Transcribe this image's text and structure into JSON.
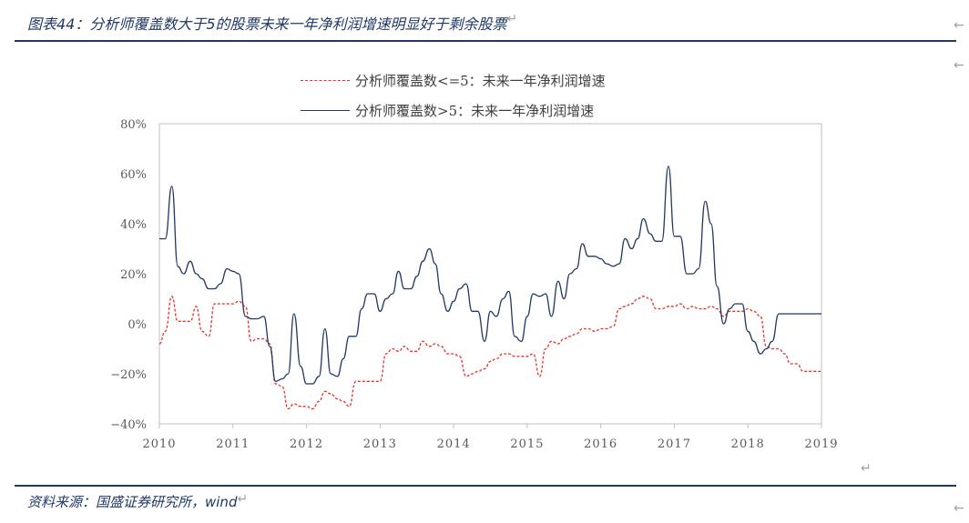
{
  "caption": {
    "title": "图表44：分析师覆盖数大于5的股票未来一年净利润增速明显好于剩余股票"
  },
  "source": "资料来源：国盛证券研究所，wind",
  "marks": {
    "return_glyph": "↵",
    "arrow_glyph": "←"
  },
  "chart_data": {
    "type": "line",
    "xlabel": "",
    "ylabel": "",
    "x_range": [
      2010,
      2019
    ],
    "ylim": [
      -40,
      80
    ],
    "x_ticks": [
      "2010",
      "2011",
      "2012",
      "2013",
      "2014",
      "2015",
      "2016",
      "2017",
      "2018",
      "2019"
    ],
    "y_ticks": [
      {
        "value": 80,
        "label": "80%"
      },
      {
        "value": 60,
        "label": "60%"
      },
      {
        "value": 40,
        "label": "40%"
      },
      {
        "value": 20,
        "label": "20%"
      },
      {
        "value": 0,
        "label": "0%"
      },
      {
        "value": -20,
        "label": "−20%"
      },
      {
        "value": -40,
        "label": "−40%"
      }
    ],
    "grid": false,
    "legend_position": "top",
    "series": [
      {
        "name": "分析师覆盖数<=5：未来一年净利润增速",
        "color": "#e8302a",
        "style": "dashed",
        "x": [
          2010.0,
          2010.08,
          2010.17,
          2010.25,
          2010.33,
          2010.42,
          2010.5,
          2010.58,
          2010.67,
          2010.75,
          2010.83,
          2010.92,
          2011.0,
          2011.08,
          2011.17,
          2011.25,
          2011.33,
          2011.42,
          2011.5,
          2011.58,
          2011.67,
          2011.75,
          2011.83,
          2011.92,
          2012.0,
          2012.08,
          2012.17,
          2012.25,
          2012.33,
          2012.42,
          2012.5,
          2012.58,
          2012.67,
          2012.75,
          2012.83,
          2012.92,
          2013.0,
          2013.08,
          2013.17,
          2013.25,
          2013.33,
          2013.42,
          2013.5,
          2013.58,
          2013.67,
          2013.75,
          2013.83,
          2013.92,
          2014.0,
          2014.08,
          2014.17,
          2014.25,
          2014.33,
          2014.42,
          2014.5,
          2014.58,
          2014.67,
          2014.75,
          2014.83,
          2014.92,
          2015.0,
          2015.08,
          2015.17,
          2015.25,
          2015.33,
          2015.42,
          2015.5,
          2015.58,
          2015.67,
          2015.75,
          2015.83,
          2015.92,
          2016.0,
          2016.08,
          2016.17,
          2016.25,
          2016.33,
          2016.42,
          2016.5,
          2016.58,
          2016.67,
          2016.75,
          2016.83,
          2016.92,
          2017.0,
          2017.08,
          2017.17,
          2017.25,
          2017.33,
          2017.42,
          2017.5,
          2017.58,
          2017.67,
          2017.75,
          2017.83,
          2017.92,
          2018.0,
          2018.08,
          2018.17,
          2018.25,
          2018.33,
          2018.42,
          2018.5,
          2018.58,
          2018.67,
          2018.75,
          2018.83,
          2018.92,
          2019.0
        ],
        "y": [
          -8,
          -3,
          11,
          1,
          1,
          1,
          7,
          -3,
          -5,
          8,
          8,
          8,
          8,
          9,
          7,
          -7,
          -6,
          -6,
          -8,
          -24,
          -25,
          -34,
          -32,
          -33,
          -33,
          -34,
          -31,
          -27,
          -28,
          -30,
          -31,
          -33,
          -23,
          -23,
          -23,
          -23,
          -23,
          -12,
          -10,
          -11,
          -9,
          -11,
          -11,
          -7,
          -9,
          -8,
          -9,
          -12,
          -12,
          -13,
          -21,
          -20,
          -19,
          -18,
          -15,
          -14,
          -12,
          -12,
          -13,
          -13,
          -13,
          -12,
          -21,
          -10,
          -7,
          -8,
          -6,
          -5,
          -4,
          -2,
          -2,
          -3,
          -2,
          -2,
          -1,
          6,
          7,
          8,
          10,
          11,
          10,
          6,
          6,
          7,
          7,
          8,
          6,
          7,
          6,
          6,
          7,
          6,
          3,
          5,
          5,
          5,
          6,
          5,
          3,
          -9,
          -10,
          -10,
          -12,
          -16,
          -16,
          -19,
          -19,
          -19,
          -19
        ]
      },
      {
        "name": "分析师覆盖数>5：未来一年净利润增速",
        "color": "#1f3864",
        "style": "solid",
        "x": [
          2010.0,
          2010.08,
          2010.17,
          2010.25,
          2010.33,
          2010.42,
          2010.5,
          2010.58,
          2010.67,
          2010.75,
          2010.83,
          2010.92,
          2011.0,
          2011.08,
          2011.17,
          2011.25,
          2011.33,
          2011.42,
          2011.5,
          2011.58,
          2011.67,
          2011.75,
          2011.83,
          2011.92,
          2012.0,
          2012.08,
          2012.17,
          2012.25,
          2012.33,
          2012.42,
          2012.5,
          2012.58,
          2012.67,
          2012.75,
          2012.83,
          2012.92,
          2013.0,
          2013.08,
          2013.17,
          2013.25,
          2013.33,
          2013.42,
          2013.5,
          2013.58,
          2013.67,
          2013.75,
          2013.83,
          2013.92,
          2014.0,
          2014.08,
          2014.17,
          2014.25,
          2014.33,
          2014.42,
          2014.5,
          2014.58,
          2014.67,
          2014.75,
          2014.83,
          2014.92,
          2015.0,
          2015.08,
          2015.17,
          2015.25,
          2015.33,
          2015.42,
          2015.5,
          2015.58,
          2015.67,
          2015.75,
          2015.83,
          2015.92,
          2016.0,
          2016.08,
          2016.17,
          2016.25,
          2016.33,
          2016.42,
          2016.5,
          2016.58,
          2016.67,
          2016.75,
          2016.83,
          2016.92,
          2017.0,
          2017.08,
          2017.17,
          2017.25,
          2017.33,
          2017.42,
          2017.5,
          2017.58,
          2017.67,
          2017.75,
          2017.83,
          2017.92,
          2018.0,
          2018.08,
          2018.17,
          2018.25,
          2018.33,
          2018.42,
          2018.5,
          2018.58,
          2018.67,
          2018.75,
          2018.83,
          2018.92,
          2019.0
        ],
        "y": [
          34,
          34,
          55,
          23,
          20,
          25,
          20,
          18,
          14,
          14,
          16,
          22,
          21,
          20,
          3,
          2,
          2,
          3,
          -9,
          -23,
          -22,
          -20,
          4,
          -17,
          -24,
          -24,
          -21,
          -2,
          -20,
          -21,
          -14,
          -5,
          -5,
          6,
          12,
          12,
          5,
          10,
          12,
          21,
          14,
          14,
          19,
          25,
          30,
          24,
          12,
          5,
          9,
          14,
          16,
          5,
          5,
          -7,
          5,
          3,
          10,
          13,
          -5,
          -7,
          3,
          12,
          11,
          12,
          3,
          17,
          10,
          20,
          22,
          32,
          27,
          27,
          26,
          24,
          23,
          24,
          34,
          30,
          34,
          42,
          36,
          33,
          33,
          63,
          35,
          35,
          20,
          20,
          22,
          49,
          40,
          15,
          0,
          6,
          8,
          8,
          -3,
          -7,
          -12,
          -10,
          -7,
          4,
          4,
          4,
          4,
          4,
          4,
          4,
          4
        ]
      }
    ]
  }
}
